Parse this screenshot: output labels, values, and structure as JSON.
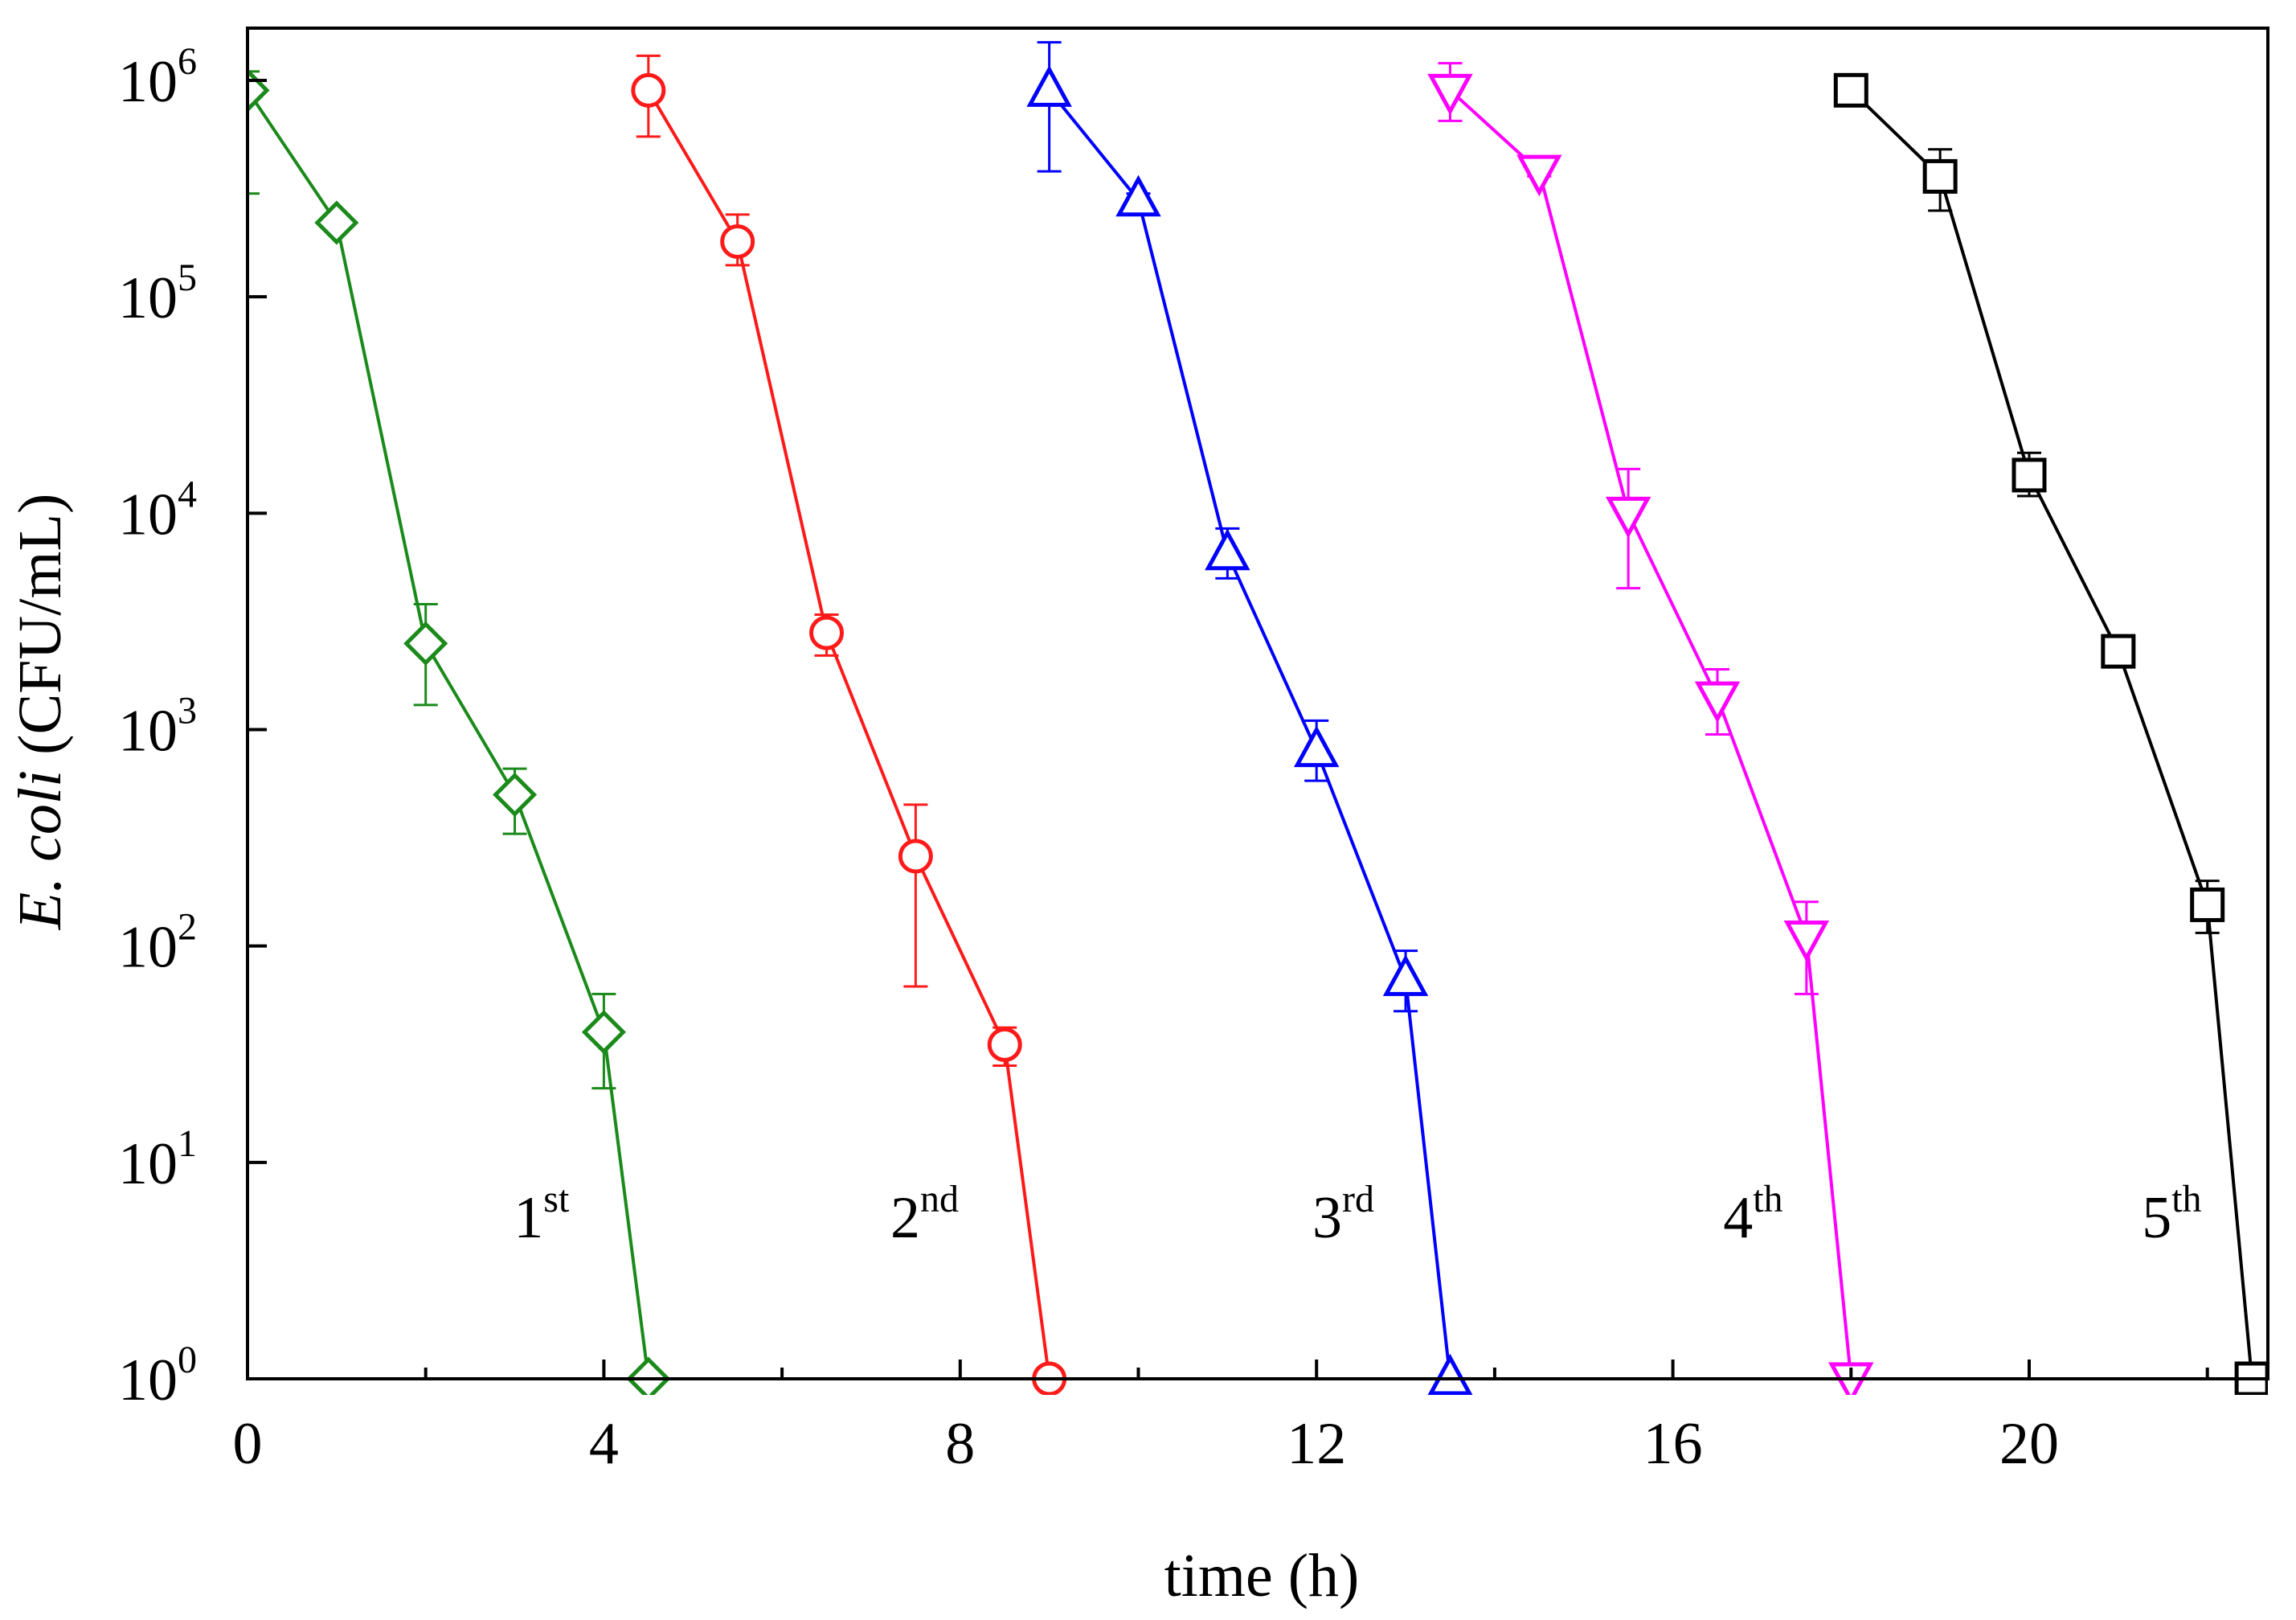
{
  "chart_data": {
    "type": "line",
    "title": "",
    "xlabel": "time (h)",
    "ylabel_italic": "E. coli",
    "ylabel_rest": " (CFU/mL)",
    "yscale": "log",
    "xlim": [
      0,
      22.7
    ],
    "ylim": [
      1,
      1000000
    ],
    "x_ticks": [
      "0",
      "4",
      "8",
      "12",
      "16",
      "20"
    ],
    "y_ticks": [
      {
        "base": "10",
        "exp": "0"
      },
      {
        "base": "10",
        "exp": "1"
      },
      {
        "base": "10",
        "exp": "2"
      },
      {
        "base": "10",
        "exp": "3"
      },
      {
        "base": "10",
        "exp": "4"
      },
      {
        "base": "10",
        "exp": "5"
      },
      {
        "base": "10",
        "exp": "6"
      }
    ],
    "legend": "none",
    "series": [
      {
        "name": "1st",
        "color": "#1a8a1a",
        "marker": "diamond",
        "x": [
          0,
          1,
          2,
          3,
          4,
          4.5
        ],
        "y": [
          900000,
          220000,
          2500,
          500,
          40,
          1
        ],
        "err_lo": [
          300000,
          200000,
          1300,
          330,
          22,
          null
        ],
        "err_hi": [
          1100000,
          240000,
          3800,
          660,
          60,
          null
        ],
        "label_main": "1",
        "label_sup": "st",
        "label_x": 3.3
      },
      {
        "name": "2nd",
        "color": "#ff1a1a",
        "marker": "circle",
        "x": [
          4.5,
          5.5,
          6.5,
          7.5,
          8.5,
          9
        ],
        "y": [
          900000,
          180000,
          2800,
          260,
          35,
          1
        ],
        "err_lo": [
          550000,
          140000,
          2200,
          65,
          28,
          null
        ],
        "err_hi": [
          1300000,
          240000,
          3400,
          450,
          42,
          null
        ],
        "label_main": "2",
        "label_sup": "nd",
        "label_x": 7.6
      },
      {
        "name": "3rd",
        "color": "#0000ff",
        "marker": "triangle-up",
        "x": [
          9,
          10,
          11,
          12,
          13,
          13.5
        ],
        "y": [
          900000,
          280000,
          6500,
          800,
          70,
          1
        ],
        "err_lo": [
          380000,
          260000,
          5000,
          580,
          50,
          null
        ],
        "err_hi": [
          1500000,
          300000,
          8500,
          1100,
          95,
          null
        ],
        "label_main": "3",
        "label_sup": "rd",
        "label_x": 12.3
      },
      {
        "name": "4th",
        "color": "#ff00ff",
        "marker": "triangle-down",
        "x": [
          13.5,
          14.5,
          15.5,
          16.5,
          17.5,
          18
        ],
        "y": [
          900000,
          380000,
          10000,
          1400,
          110,
          1
        ],
        "err_lo": [
          650000,
          360000,
          4500,
          950,
          60,
          null
        ],
        "err_hi": [
          1200000,
          400000,
          16000,
          1900,
          160,
          null
        ],
        "label_main": "4",
        "label_sup": "th",
        "label_x": 16.9
      },
      {
        "name": "5th",
        "color": "#000000",
        "marker": "square",
        "x": [
          18,
          19,
          20,
          21,
          22,
          22.5
        ],
        "y": [
          900000,
          360000,
          15000,
          2300,
          155,
          1
        ],
        "err_lo": [
          900000,
          250000,
          12000,
          2100,
          115,
          null
        ],
        "err_hi": [
          900000,
          480000,
          19000,
          2500,
          200,
          null
        ],
        "label_main": "5",
        "label_sup": "th",
        "label_x": 21.6
      }
    ],
    "annotation_y": 5
  }
}
